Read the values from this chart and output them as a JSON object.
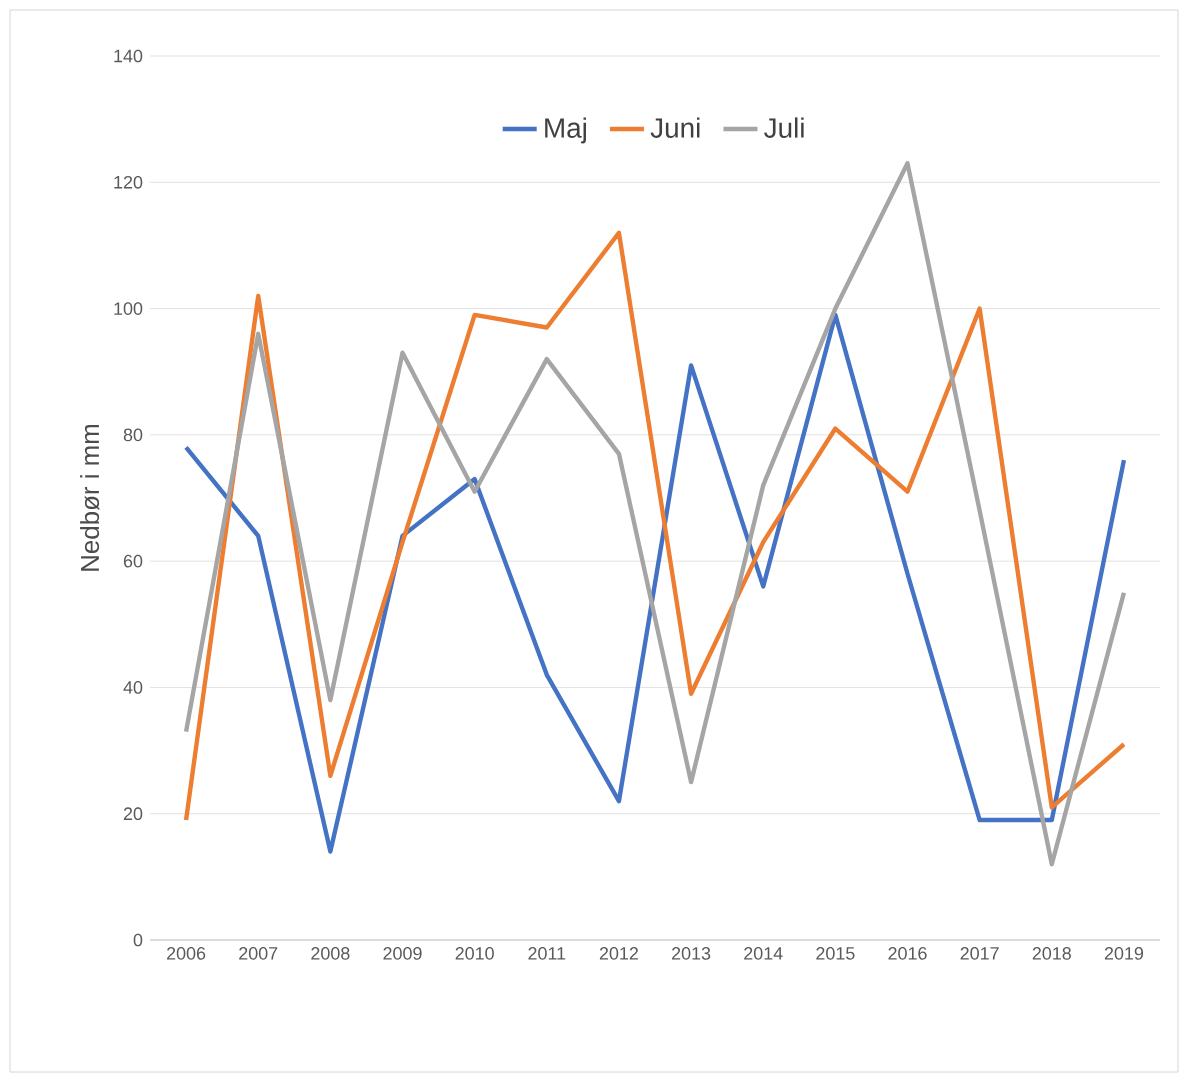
{
  "chart_data": {
    "type": "line",
    "ylabel": "Nedbør i mm",
    "categories": [
      "2006",
      "2007",
      "2008",
      "2009",
      "2010",
      "2011",
      "2012",
      "2013",
      "2014",
      "2015",
      "2016",
      "2017",
      "2018",
      "2019"
    ],
    "series": [
      {
        "name": "Maj",
        "color": "#4472c4",
        "values": [
          78,
          64,
          14,
          64,
          73,
          42,
          22,
          91,
          56,
          99,
          58,
          19,
          19,
          76
        ]
      },
      {
        "name": "Juni",
        "color": "#ed7d31",
        "values": [
          19,
          102,
          26,
          63,
          99,
          97,
          112,
          39,
          63,
          81,
          71,
          100,
          21,
          31
        ]
      },
      {
        "name": "Juli",
        "color": "#a5a5a5",
        "values": [
          33,
          96,
          38,
          93,
          71,
          92,
          77,
          25,
          72,
          100,
          123,
          68,
          12,
          55
        ]
      }
    ],
    "ylim": [
      0,
      140
    ],
    "yticks": [
      0,
      20,
      40,
      60,
      80,
      100,
      120,
      140
    ],
    "grid": "y",
    "legend": "top",
    "marker": "none",
    "line_style": "solid"
  }
}
